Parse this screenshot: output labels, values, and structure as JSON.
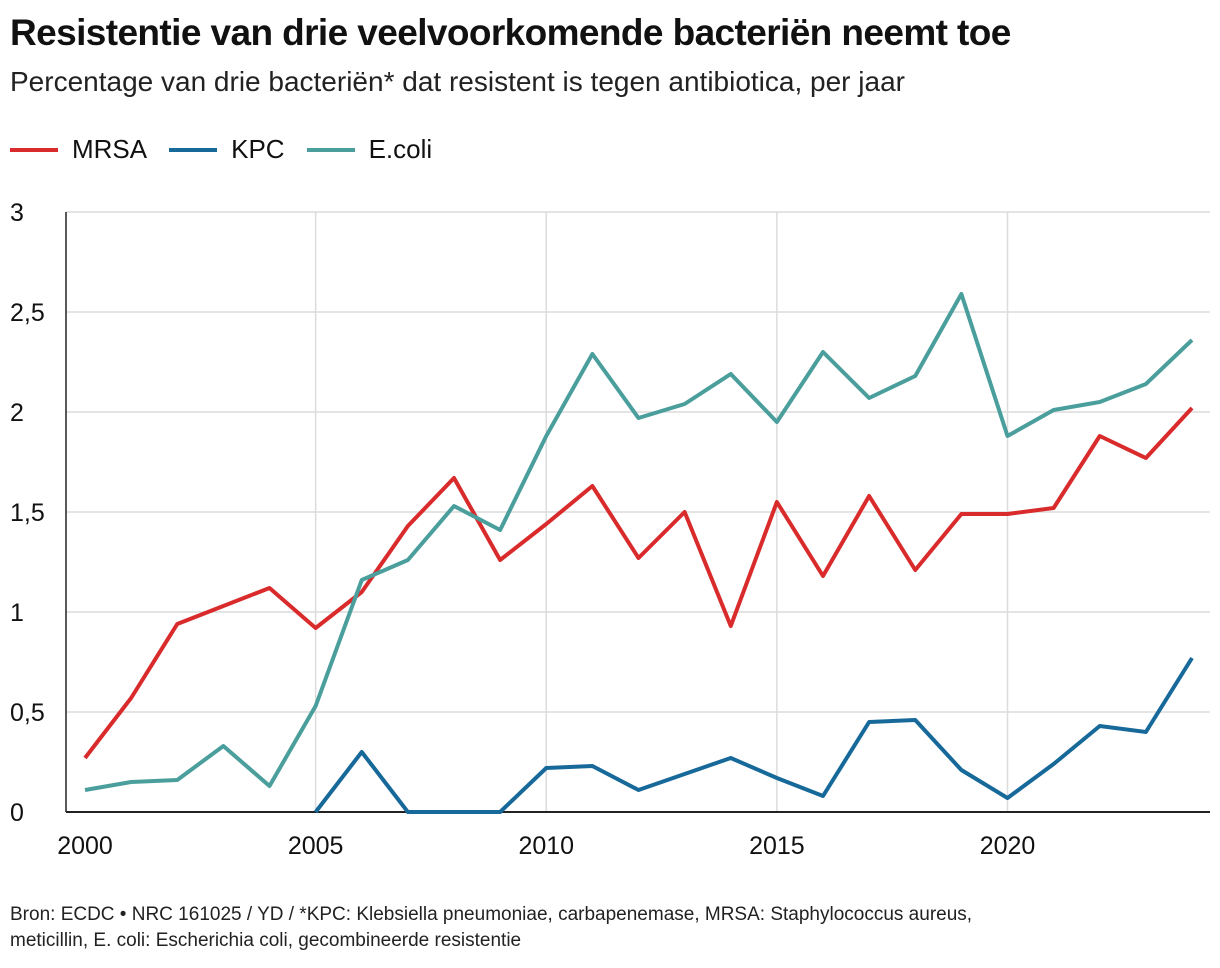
{
  "title": "Resistentie van drie veelvoorkomende bacteriën neemt toe",
  "subtitle": "Percentage van drie bacteriën* dat resistent is tegen antibiotica, per jaar",
  "footer": {
    "line1": "Bron: ECDC • NRC 161025 / YD / *KPC: Klebsiella pneumoniae, carbapenemase, MRSA: Staphylococcus aureus,",
    "line2": "meticillin, E. coli: Escherichia coli, gecombineerde resistentie"
  },
  "chart_data": {
    "type": "line",
    "title": "Resistentie van drie veelvoorkomende bacteriën neemt toe",
    "xlabel": "",
    "ylabel": "",
    "xlim": [
      2000,
      2024
    ],
    "ylim": [
      0,
      3
    ],
    "x_ticks": [
      2000,
      2005,
      2010,
      2015,
      2020
    ],
    "x_tick_labels": [
      "2000",
      "2005",
      "2010",
      "2015",
      "2020"
    ],
    "y_ticks": [
      0,
      0.5,
      1,
      1.5,
      2,
      2.5,
      3
    ],
    "y_tick_labels": [
      "0",
      "0,5",
      "1",
      "1,5",
      "2",
      "2,5",
      "3"
    ],
    "grid": true,
    "legend_position": "top-left",
    "series": [
      {
        "name": "MRSA",
        "color": "#d92b2b",
        "x": [
          2000,
          2001,
          2002,
          2003,
          2004,
          2005,
          2006,
          2007,
          2008,
          2009,
          2010,
          2011,
          2012,
          2013,
          2014,
          2015,
          2016,
          2017,
          2018,
          2019,
          2020,
          2021,
          2022,
          2023,
          2024
        ],
        "values": [
          0.27,
          0.57,
          0.94,
          1.03,
          1.12,
          0.92,
          1.1,
          1.43,
          1.67,
          1.26,
          1.44,
          1.63,
          1.27,
          1.5,
          0.93,
          1.55,
          1.18,
          1.58,
          1.21,
          1.49,
          1.49,
          1.52,
          1.88,
          1.77,
          2.02
        ]
      },
      {
        "name": "KPC",
        "color": "#17699a",
        "x": [
          2005,
          2006,
          2007,
          2008,
          2009,
          2010,
          2011,
          2012,
          2013,
          2014,
          2015,
          2016,
          2017,
          2018,
          2019,
          2020,
          2021,
          2022,
          2023,
          2024
        ],
        "values": [
          0,
          0.3,
          0,
          0,
          0,
          0.22,
          0.23,
          0.11,
          0.19,
          0.27,
          0.17,
          0.08,
          0.45,
          0.46,
          0.21,
          0.07,
          0.24,
          0.43,
          0.4,
          0.77
        ]
      },
      {
        "name": "E.coli",
        "color": "#4a9e9c",
        "x": [
          2000,
          2001,
          2002,
          2003,
          2004,
          2005,
          2006,
          2007,
          2008,
          2009,
          2010,
          2011,
          2012,
          2013,
          2014,
          2015,
          2016,
          2017,
          2018,
          2019,
          2020,
          2021,
          2022,
          2023,
          2024
        ],
        "values": [
          0.11,
          0.15,
          0.16,
          0.33,
          0.13,
          0.53,
          1.16,
          1.26,
          1.53,
          1.41,
          1.88,
          2.29,
          1.97,
          2.04,
          2.19,
          1.95,
          2.3,
          2.07,
          2.18,
          2.59,
          1.88,
          2.01,
          2.05,
          2.14,
          2.36
        ]
      }
    ]
  }
}
